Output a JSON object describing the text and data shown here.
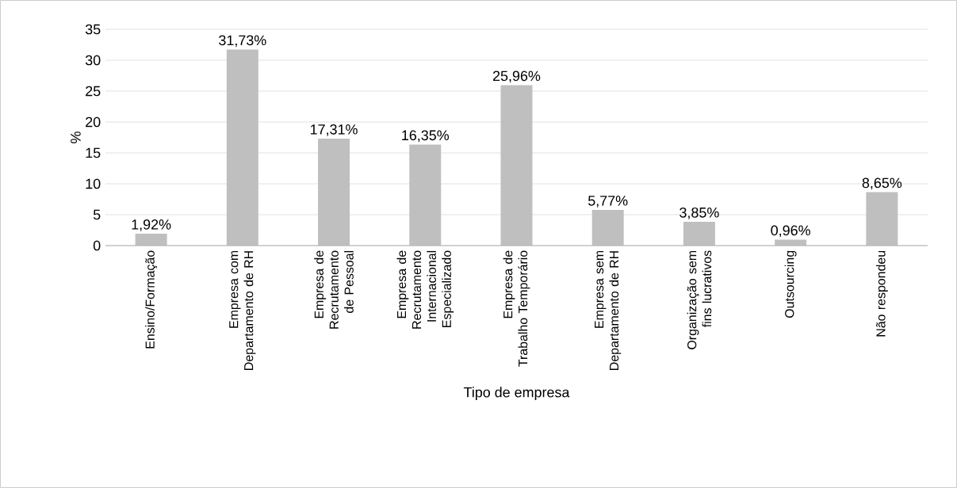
{
  "chart_data": {
    "type": "bar",
    "xlabel": "Tipo de empresa",
    "ylabel": "%",
    "categories": [
      "Ensino/Formação",
      "Empresa com Departamento de RH",
      "Empresa de Recrutamento de Pessoal",
      "Empresa de Recrutamento Internacional Especializado",
      "Empresa de Trabalho Temporário",
      "Empresa sem Departamento de RH",
      "Organização sem fins lucrativos",
      "Outsourcing",
      "Não respondeu"
    ],
    "values": [
      1.92,
      31.73,
      17.31,
      16.35,
      25.96,
      5.77,
      3.85,
      0.96,
      8.65
    ],
    "value_labels": [
      "1,92%",
      "31,73%",
      "17,31%",
      "16,35%",
      "25,96%",
      "5,77%",
      "3,85%",
      "0,96%",
      "8,65%"
    ],
    "color": "#bfbfbf",
    "ylim": [
      0,
      35
    ],
    "yticks": [
      0,
      5,
      10,
      15,
      20,
      25,
      30,
      35
    ],
    "grid": "y"
  }
}
